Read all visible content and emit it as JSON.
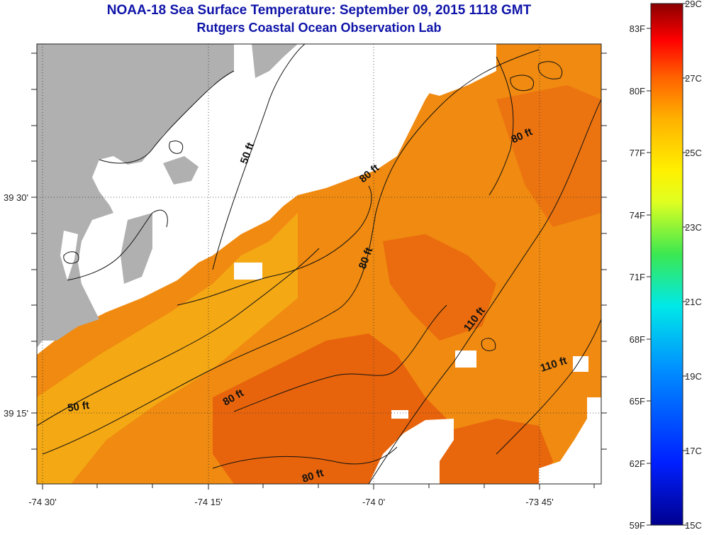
{
  "title": {
    "line1": "NOAA-18 Sea Surface Temperature:  September 09, 2015 1118 GMT",
    "line2": "Rutgers Coastal Ocean Observation Lab"
  },
  "map": {
    "lon_ticks": [
      "-74 30'",
      "-74 15'",
      "-74 0'",
      "-73 45'"
    ],
    "lat_ticks": [
      "39 30'",
      "39 15'"
    ],
    "contour_labels": [
      "50 ft",
      "80 ft",
      "80 ft",
      "80 ft",
      "110 ft",
      "110 ft",
      "50 ft",
      "80 ft",
      "80 ft"
    ],
    "colors": {
      "land": "#b0b0b0",
      "no_data": "#ffffff",
      "sst_main": "#f08a10",
      "sst_warm": "#e8640c",
      "sst_cool": "#f5b210"
    }
  },
  "colorbar": {
    "f_labels": [
      "83F",
      "80F",
      "77F",
      "74F",
      "71F",
      "68F",
      "65F",
      "62F",
      "59F"
    ],
    "c_labels": [
      "29C",
      "27C",
      "25C",
      "23C",
      "21C",
      "19C",
      "17C",
      "15C"
    ]
  }
}
